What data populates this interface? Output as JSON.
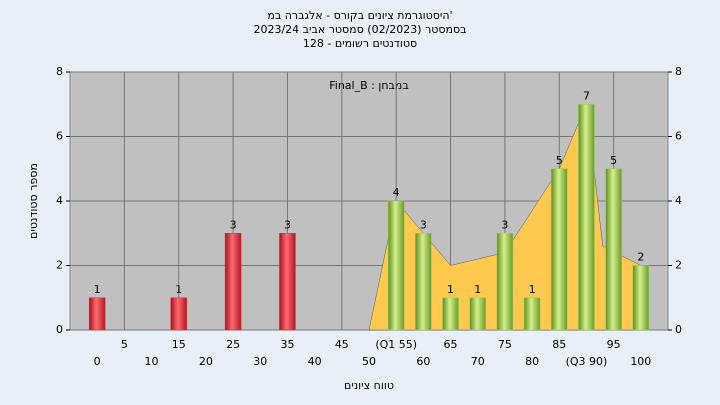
{
  "chart_data": {
    "type": "bar",
    "title": [
      "היסטוגרמת ציונים בקורס - אלגברה במ'",
      "בסמסטר  (02/2023)  סמסטר אביב 2023/24",
      "סטודנטים רשומים - 128"
    ],
    "annotation": "Final_B : במבחן",
    "x_label": "טווח ציונים",
    "y_label": "מספר סטודנטים",
    "xlim": [
      -5,
      105
    ],
    "xticks": [
      0,
      5,
      10,
      15,
      20,
      25,
      30,
      35,
      40,
      45,
      50,
      {
        "value": 55,
        "label": "(Q1 55)"
      },
      60,
      65,
      70,
      75,
      80,
      85,
      {
        "value": 90,
        "label": "(Q3 90)"
      },
      95,
      100
    ],
    "ylim": [
      0,
      8
    ],
    "yticks": [
      0,
      2,
      4,
      6,
      8
    ],
    "grid": true,
    "area": {
      "color": "#ffc94f",
      "x": [
        50,
        55,
        60,
        65,
        75,
        85,
        90,
        93,
        100
      ],
      "values": [
        0,
        4,
        3,
        2,
        2.4,
        5,
        7,
        2.6,
        2
      ]
    },
    "series": [
      {
        "color": "#e8303a",
        "x": [
          0,
          15,
          25,
          35
        ],
        "values": [
          1,
          1,
          3,
          3
        ]
      },
      {
        "color": "#9ccf52",
        "x": [
          55,
          60,
          65,
          70,
          75,
          80,
          85,
          90,
          95,
          100
        ],
        "values": [
          4,
          3,
          1,
          1,
          3,
          1,
          5,
          7,
          5,
          2
        ]
      }
    ]
  }
}
